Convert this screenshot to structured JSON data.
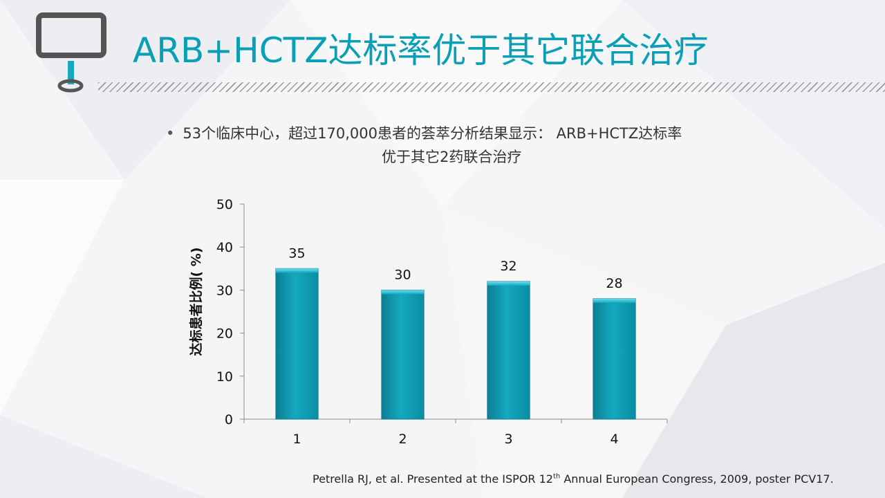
{
  "title": "ARB+HCTZ达标率优于其它联合治疗",
  "bullet": {
    "line1": "53个临床中心，超过170,000患者的荟萃分析结果显示： ARB+HCTZ达标率",
    "line2": "优于其它2药联合治疗"
  },
  "footnote": {
    "part1": "Petrella RJ, et al. Presented at the ISPOR 12",
    "sup": "th",
    "part2": " Annual European Congress, 2009, poster PCV17."
  },
  "colors": {
    "title": "#0a9fb4",
    "bar": "#14a8bf",
    "logo_frame": "#555555",
    "logo_stand": "#17a9c0"
  },
  "icons": {
    "logo": "monitor-icon"
  },
  "chart_data": {
    "type": "bar",
    "categories": [
      "1",
      "2",
      "3",
      "4"
    ],
    "values": [
      35,
      30,
      32,
      28
    ],
    "data_labels": [
      "35",
      "30",
      "32",
      "28"
    ],
    "title": "",
    "xlabel": "",
    "ylabel": "达标患者比例( %)",
    "ylim": [
      0,
      50
    ],
    "yticks": [
      0,
      10,
      20,
      30,
      40,
      50
    ],
    "grid": false,
    "legend": "none"
  }
}
